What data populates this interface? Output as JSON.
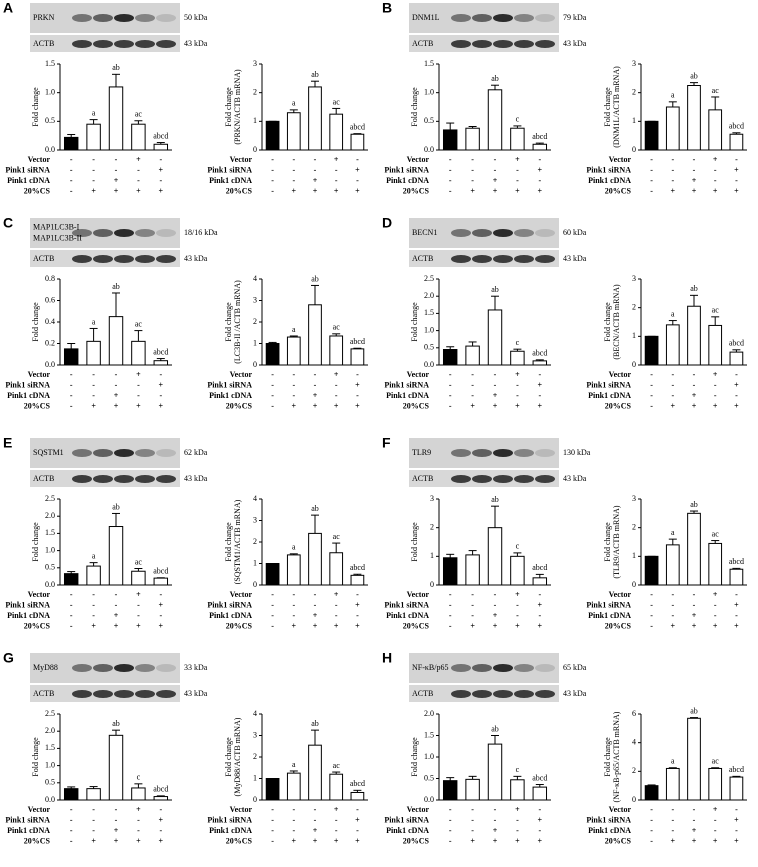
{
  "panels": [
    {
      "letter": "A",
      "protein_labels": [
        "PRKN"
      ],
      "protein_kda": "50 kDa",
      "loading_label": "ACTB",
      "loading_kda": "43 kDa"
    },
    {
      "letter": "B",
      "protein_labels": [
        "DNM1L"
      ],
      "protein_kda": "79 kDa",
      "loading_label": "ACTB",
      "loading_kda": "43 kDa"
    },
    {
      "letter": "C",
      "protein_labels": [
        "MAP1LC3B-I",
        "MAP1LC3B-II"
      ],
      "protein_kda": "18/16 kDa",
      "loading_label": "ACTB",
      "loading_kda": "43 kDa"
    },
    {
      "letter": "D",
      "protein_labels": [
        "BECN1"
      ],
      "protein_kda": "60 kDa",
      "loading_label": "ACTB",
      "loading_kda": "43 kDa"
    },
    {
      "letter": "E",
      "protein_labels": [
        "SQSTM1"
      ],
      "protein_kda": "62 kDa",
      "loading_label": "ACTB",
      "loading_kda": "43 kDa"
    },
    {
      "letter": "F",
      "protein_labels": [
        "TLR9"
      ],
      "protein_kda": "130 kDa",
      "loading_label": "ACTB",
      "loading_kda": "43 kDa"
    },
    {
      "letter": "G",
      "protein_labels": [
        "MyD88"
      ],
      "protein_kda": "33 kDa",
      "loading_label": "ACTB",
      "loading_kda": "43 kDa"
    },
    {
      "letter": "H",
      "protein_labels": [
        "NF-κB/p65"
      ],
      "protein_kda": "65 kDa",
      "loading_label": "ACTB",
      "loading_kda": "43 kDa"
    }
  ],
  "treatments": [
    {
      "label": "Vector",
      "signs": [
        "-",
        "-",
        "-",
        "+",
        "-"
      ]
    },
    {
      "label": "Pink1 siRNA",
      "signs": [
        "-",
        "-",
        "-",
        "-",
        "+"
      ]
    },
    {
      "label": "Pink1 cDNA",
      "signs": [
        "-",
        "-",
        "+",
        "-",
        "-"
      ]
    },
    {
      "label": "20%CS",
      "signs": [
        "-",
        "+",
        "+",
        "+",
        "+"
      ]
    }
  ],
  "chart_data": [
    {
      "type": "bar",
      "ylabel": [
        "Fold change"
      ],
      "ylim": [
        0,
        1.5
      ],
      "yticks": [
        {
          "value": 0,
          "label": "0.0"
        },
        {
          "value": 0.5,
          "label": "0.5"
        },
        {
          "value": 1,
          "label": "1.0"
        },
        {
          "value": 1.5,
          "label": "1.5"
        }
      ],
      "values": [
        0.22,
        0.45,
        1.1,
        0.45,
        0.1
      ],
      "errors": [
        0.05,
        0.08,
        0.22,
        0.06,
        0.03
      ],
      "annotations": [
        null,
        "a",
        "ab",
        "ac",
        "abcd"
      ],
      "colors": [
        "#000000",
        "#ffffff",
        "#ffffff",
        "#ffffff",
        "#ffffff"
      ]
    },
    {
      "type": "bar",
      "ylabel": [
        "Fold change",
        "(PRKN/ACTB mRNA)"
      ],
      "ylim": [
        0,
        3
      ],
      "yticks": [
        0,
        1,
        2,
        3
      ],
      "values": [
        1,
        1.3,
        2.2,
        1.25,
        0.55
      ],
      "errors": [
        0,
        0.1,
        0.2,
        0.2,
        0.02
      ],
      "annotations": [
        null,
        "a",
        "ab",
        "ac",
        "abcd"
      ],
      "colors": [
        "#000000",
        "#ffffff",
        "#ffffff",
        "#ffffff",
        "#ffffff"
      ]
    },
    {
      "type": "bar",
      "ylabel": [
        "Fold change"
      ],
      "ylim": [
        0,
        1.5
      ],
      "yticks": [
        {
          "value": 0,
          "label": "0.0"
        },
        {
          "value": 0.5,
          "label": "0.5"
        },
        {
          "value": 1,
          "label": "1.0"
        },
        {
          "value": 1.5,
          "label": "1.5"
        }
      ],
      "values": [
        0.35,
        0.38,
        1.05,
        0.38,
        0.1
      ],
      "errors": [
        0.12,
        0.03,
        0.08,
        0.04,
        0.02
      ],
      "annotations": [
        null,
        null,
        "ab",
        "c",
        "abcd"
      ],
      "colors": [
        "#000000",
        "#ffffff",
        "#ffffff",
        "#ffffff",
        "#ffffff"
      ]
    },
    {
      "type": "bar",
      "ylabel": [
        "Fold change",
        "(DNM1L/ACTB mRNA)"
      ],
      "ylim": [
        0,
        3
      ],
      "yticks": [
        0,
        1,
        2,
        3
      ],
      "values": [
        1,
        1.5,
        2.25,
        1.4,
        0.55
      ],
      "errors": [
        0,
        0.18,
        0.1,
        0.45,
        0.05
      ],
      "annotations": [
        null,
        "a",
        "ab",
        "ac",
        "abcd"
      ],
      "colors": [
        "#000000",
        "#ffffff",
        "#ffffff",
        "#ffffff",
        "#ffffff"
      ]
    },
    {
      "type": "bar",
      "ylabel": [
        "Fold change"
      ],
      "ylim": [
        0,
        0.8
      ],
      "yticks": [
        {
          "value": 0,
          "label": "0.0"
        },
        0.2,
        0.4,
        0.6,
        0.8
      ],
      "values": [
        0.15,
        0.22,
        0.45,
        0.22,
        0.04
      ],
      "errors": [
        0.05,
        0.12,
        0.22,
        0.1,
        0.02
      ],
      "annotations": [
        null,
        "a",
        "ab",
        "ac",
        "abcd"
      ],
      "colors": [
        "#000000",
        "#ffffff",
        "#ffffff",
        "#ffffff",
        "#ffffff"
      ]
    },
    {
      "type": "bar",
      "ylabel": [
        "Fold change",
        "(LC3B-II /ACTB mRNA)"
      ],
      "ylim": [
        0,
        4
      ],
      "yticks": [
        0,
        1,
        2,
        3,
        4
      ],
      "values": [
        1,
        1.3,
        2.8,
        1.35,
        0.75
      ],
      "errors": [
        0.05,
        0.05,
        0.9,
        0.1,
        0.03
      ],
      "annotations": [
        null,
        "a",
        "ab",
        "ac",
        "abcd"
      ],
      "colors": [
        "#000000",
        "#ffffff",
        "#ffffff",
        "#ffffff",
        "#ffffff"
      ]
    },
    {
      "type": "bar",
      "ylabel": [
        "Fold change"
      ],
      "ylim": [
        0,
        2.5
      ],
      "yticks": [
        {
          "value": 0,
          "label": "0.0"
        },
        0.5,
        {
          "value": 1,
          "label": "1.0"
        },
        1.5,
        {
          "value": 2,
          "label": "2.0"
        },
        2.5
      ],
      "values": [
        0.45,
        0.55,
        1.6,
        0.4,
        0.12
      ],
      "errors": [
        0.08,
        0.12,
        0.4,
        0.06,
        0.03
      ],
      "annotations": [
        null,
        null,
        "ab",
        "c",
        "abcd"
      ],
      "colors": [
        "#000000",
        "#ffffff",
        "#ffffff",
        "#ffffff",
        "#ffffff"
      ]
    },
    {
      "type": "bar",
      "ylabel": [
        "Fold change",
        "(BECN/ACTB mRNA)"
      ],
      "ylim": [
        0,
        3
      ],
      "yticks": [
        0,
        1,
        2,
        3
      ],
      "values": [
        1,
        1.4,
        2.05,
        1.38,
        0.45
      ],
      "errors": [
        0,
        0.15,
        0.38,
        0.3,
        0.08
      ],
      "annotations": [
        null,
        "a",
        "ab",
        "ac",
        "abcd"
      ],
      "colors": [
        "#000000",
        "#ffffff",
        "#ffffff",
        "#ffffff",
        "#ffffff"
      ]
    },
    {
      "type": "bar",
      "ylabel": [
        "Fold change"
      ],
      "ylim": [
        0,
        2.5
      ],
      "yticks": [
        {
          "value": 0,
          "label": "0.0"
        },
        0.5,
        {
          "value": 1,
          "label": "1.0"
        },
        1.5,
        {
          "value": 2,
          "label": "2.0"
        },
        2.5
      ],
      "values": [
        0.33,
        0.55,
        1.7,
        0.4,
        0.2
      ],
      "errors": [
        0.06,
        0.1,
        0.38,
        0.08,
        0.01
      ],
      "annotations": [
        null,
        "a",
        "ab",
        "ac",
        "abcd"
      ],
      "colors": [
        "#000000",
        "#ffffff",
        "#ffffff",
        "#ffffff",
        "#ffffff"
      ]
    },
    {
      "type": "bar",
      "ylabel": [
        "Fold change",
        "(SQSTM1/ACTB mRNA)"
      ],
      "ylim": [
        0,
        4
      ],
      "yticks": [
        0,
        1,
        2,
        3,
        4
      ],
      "values": [
        1,
        1.4,
        2.4,
        1.5,
        0.45
      ],
      "errors": [
        0,
        0.05,
        0.85,
        0.45,
        0.05
      ],
      "annotations": [
        null,
        "a",
        "ab",
        "ac",
        "abcd"
      ],
      "colors": [
        "#000000",
        "#ffffff",
        "#ffffff",
        "#ffffff",
        "#ffffff"
      ]
    },
    {
      "type": "bar",
      "ylabel": [
        "Fold change"
      ],
      "ylim": [
        0,
        3
      ],
      "yticks": [
        0,
        1,
        2,
        3
      ],
      "values": [
        0.95,
        1.05,
        2.0,
        1.0,
        0.25
      ],
      "errors": [
        0.12,
        0.15,
        0.75,
        0.12,
        0.12
      ],
      "annotations": [
        null,
        null,
        "ab",
        "c",
        "abcd"
      ],
      "colors": [
        "#000000",
        "#ffffff",
        "#ffffff",
        "#ffffff",
        "#ffffff"
      ]
    },
    {
      "type": "bar",
      "ylabel": [
        "Fold change",
        "(TLR9/ACTB mRNA)"
      ],
      "ylim": [
        0,
        3
      ],
      "yticks": [
        0,
        1,
        2,
        3
      ],
      "values": [
        1,
        1.4,
        2.5,
        1.45,
        0.55
      ],
      "errors": [
        0,
        0.2,
        0.08,
        0.1,
        0.03
      ],
      "annotations": [
        null,
        "a",
        "ab",
        "ac",
        "abcd"
      ],
      "colors": [
        "#000000",
        "#ffffff",
        "#ffffff",
        "#ffffff",
        "#ffffff"
      ]
    },
    {
      "type": "bar",
      "ylabel": [
        "Fold change"
      ],
      "ylim": [
        0,
        2.5
      ],
      "yticks": [
        {
          "value": 0,
          "label": "0.0"
        },
        0.5,
        {
          "value": 1,
          "label": "1.0"
        },
        1.5,
        {
          "value": 2,
          "label": "2.0"
        },
        2.5
      ],
      "values": [
        0.33,
        0.33,
        1.88,
        0.35,
        0.1
      ],
      "errors": [
        0.05,
        0.06,
        0.15,
        0.12,
        0.02
      ],
      "annotations": [
        null,
        null,
        "ab",
        "c",
        "abcd"
      ],
      "colors": [
        "#000000",
        "#ffffff",
        "#ffffff",
        "#ffffff",
        "#ffffff"
      ]
    },
    {
      "type": "bar",
      "ylabel": [
        "Fold change",
        "(MyD88/ACTB mRNA)"
      ],
      "ylim": [
        0,
        4
      ],
      "yticks": [
        0,
        1,
        2,
        3,
        4
      ],
      "values": [
        1,
        1.25,
        2.55,
        1.2,
        0.35
      ],
      "errors": [
        0,
        0.1,
        0.7,
        0.1,
        0.1
      ],
      "annotations": [
        null,
        "a",
        "ab",
        "ac",
        "abcd"
      ],
      "colors": [
        "#000000",
        "#ffffff",
        "#ffffff",
        "#ffffff",
        "#ffffff"
      ]
    },
    {
      "type": "bar",
      "ylabel": [
        "Fold change"
      ],
      "ylim": [
        0,
        2
      ],
      "yticks": [
        {
          "value": 0,
          "label": "0.0"
        },
        0.5,
        {
          "value": 1,
          "label": "1.0"
        },
        1.5,
        {
          "value": 2,
          "label": "2.0"
        }
      ],
      "values": [
        0.45,
        0.48,
        1.3,
        0.47,
        0.3
      ],
      "errors": [
        0.07,
        0.07,
        0.2,
        0.08,
        0.06
      ],
      "annotations": [
        null,
        null,
        "ab",
        "c",
        "abcd"
      ],
      "colors": [
        "#000000",
        "#ffffff",
        "#ffffff",
        "#ffffff",
        "#ffffff"
      ]
    },
    {
      "type": "bar",
      "ylabel": [
        "Fold change",
        "(NF-κB-p65/ACTB mRNA)"
      ],
      "ylim": [
        0,
        6
      ],
      "yticks": [
        0,
        2,
        4,
        6
      ],
      "values": [
        1,
        2.2,
        5.7,
        2.2,
        1.6
      ],
      "errors": [
        0.05,
        0.05,
        0.05,
        0.05,
        0.05
      ],
      "annotations": [
        null,
        "a",
        "ab",
        "ac",
        "abcd"
      ],
      "colors": [
        "#000000",
        "#ffffff",
        "#ffffff",
        "#ffffff",
        "#ffffff"
      ]
    }
  ]
}
